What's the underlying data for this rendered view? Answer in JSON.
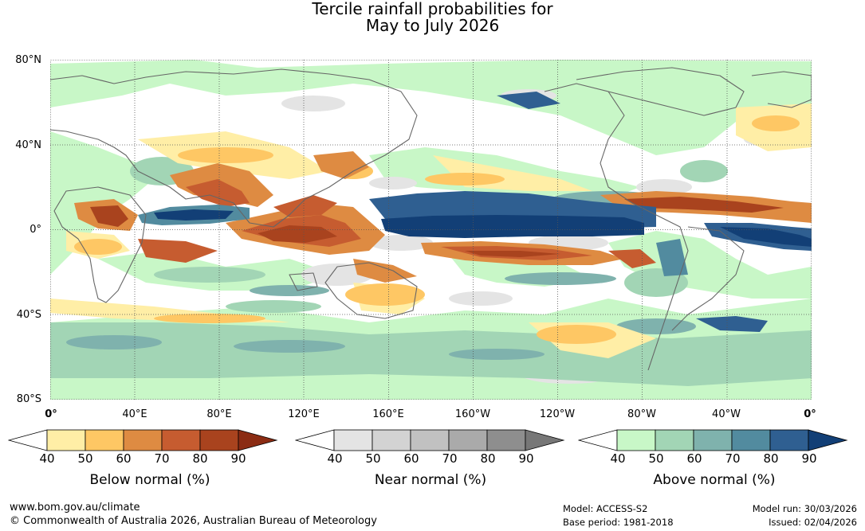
{
  "title": {
    "line1": "Tercile rainfall probabilities for",
    "line2": "May to July 2026"
  },
  "map": {
    "lat_labels": [
      "80°N",
      "40°N",
      "0°",
      "40°S",
      "80°S"
    ],
    "lon_labels": [
      "0°",
      "40°E",
      "80°E",
      "120°E",
      "160°E",
      "160°W",
      "120°W",
      "80°W",
      "40°W",
      "0°"
    ],
    "colors": {
      "below": [
        "#ffeea6",
        "#fec764",
        "#de8b42",
        "#c65c30",
        "#a9431e",
        "#8b2c13"
      ],
      "near": [
        "#e4e4e4",
        "#d3d3d3",
        "#c1c1c1",
        "#aaaaaa",
        "#8e8e8e",
        "#777777"
      ],
      "above": [
        "#c8f7c7",
        "#a2d5b5",
        "#7fb2ad",
        "#528b9f",
        "#2f5f91",
        "#123f76"
      ],
      "coastline": "#666666",
      "background": "#ffffff"
    }
  },
  "legends": {
    "ticks": [
      "40",
      "50",
      "60",
      "70",
      "80",
      "90"
    ],
    "below_label": "Below normal (%)",
    "near_label": "Near normal (%)",
    "above_label": "Above normal (%)"
  },
  "footer": {
    "url": "www.bom.gov.au/climate",
    "copyright": "© Commonwealth of Australia 2026, Australian Bureau of Meteorology",
    "model": "Model: ACCESS-S2",
    "base_period": "Base period: 1981-2018",
    "model_run": "Model run: 30/03/2026",
    "issued": "Issued: 02/04/2026"
  }
}
